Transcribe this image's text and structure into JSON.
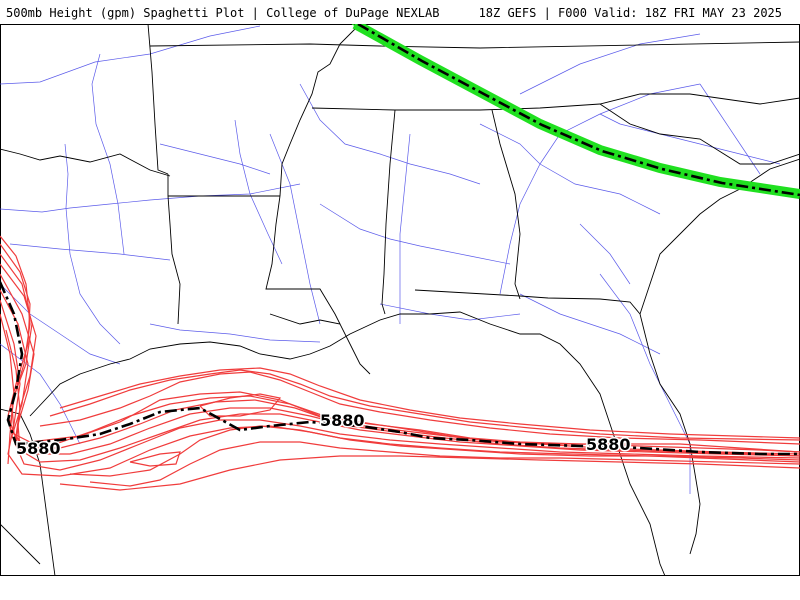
{
  "header": {
    "title": "500mb Height (gpm) Spaghetti Plot | College of DuPage NEXLAB",
    "valid": "18Z GEFS | F000 Valid: 18Z FRI MAY 23 2025"
  },
  "contours": {
    "labels": [
      "5880",
      "5880",
      "5880"
    ]
  },
  "colors": {
    "member_red": "#f03c3c",
    "member_green": "#20e020",
    "mean_line": "#000000",
    "state_borders": "#000000",
    "highways": "#4a4ae8"
  }
}
